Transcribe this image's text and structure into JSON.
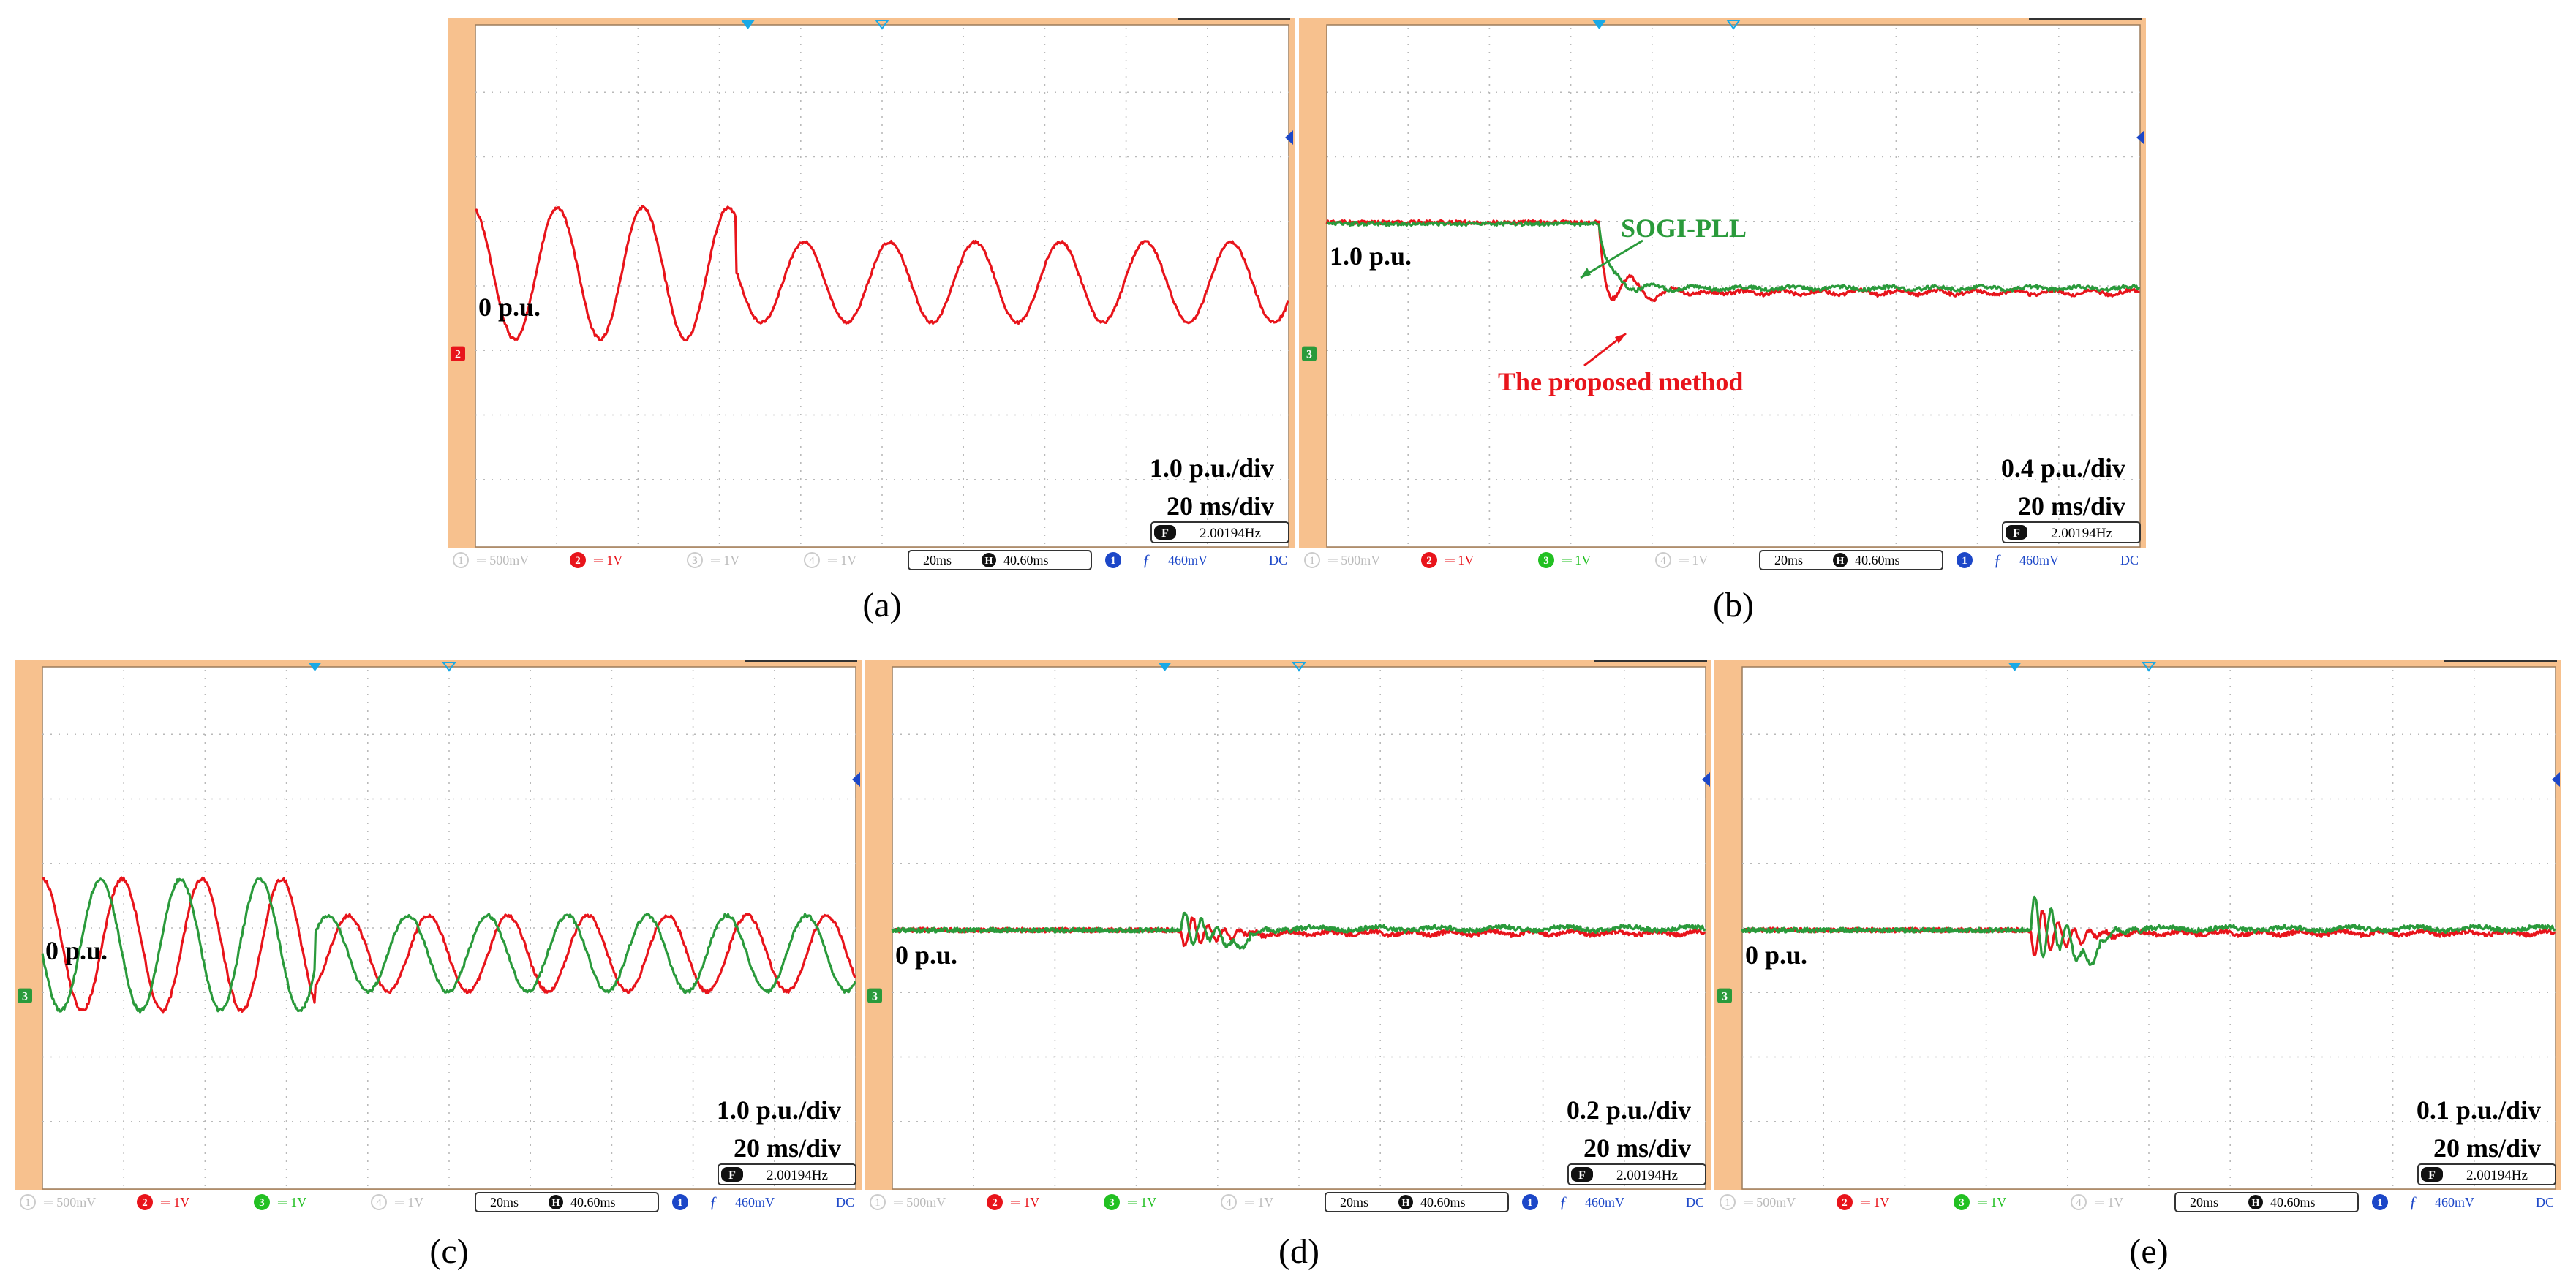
{
  "figure": {
    "captions": [
      "(a)",
      "(b)",
      "(c)",
      "(d)",
      "(e)"
    ]
  },
  "colors": {
    "orange": "#f7c18e",
    "red": "#e8141b",
    "green": "#2a9a3b",
    "grid": "#b9b9b9",
    "marker_cyan": "#19a9e6",
    "marker_blue": "#1c47c8"
  },
  "status_bar": {
    "ch1": "1",
    "ch1_scale": "500mV",
    "ch2": "2",
    "ch2_scale": "1V",
    "ch3": "3",
    "ch3_scale": "1V",
    "ch4": "4",
    "ch4_scale": "1V",
    "timebase": "20ms",
    "h_icon": "H",
    "delay": "40.60ms",
    "trig_ch": "1",
    "trig_symbol": "ƒ",
    "trig_level": "460mV",
    "coupling": "DC",
    "freq_icon": "F",
    "frequency": "2.00194Hz"
  },
  "panels": [
    {
      "id": "a",
      "ref_marker": "2",
      "ref_color": "red",
      "zero_label": "0 p.u.",
      "scale_label": "1.0 p.u./div",
      "time_label": "20 ms/div",
      "show_ch3": false,
      "traces": [
        "red"
      ]
    },
    {
      "id": "b",
      "ref_marker": "3",
      "ref_color": "green",
      "zero_label": "1.0 p.u.",
      "scale_label": "0.4 p.u./div",
      "time_label": "20 ms/div",
      "show_ch3": true,
      "annot_green": "SOGI-PLL",
      "annot_red": "The proposed method",
      "traces": [
        "red",
        "green"
      ]
    },
    {
      "id": "c",
      "ref_marker": "3",
      "ref_color": "green",
      "zero_label": "0 p.u.",
      "scale_label": "1.0 p.u./div",
      "time_label": "20 ms/div",
      "show_ch3": true,
      "traces": [
        "red",
        "green"
      ]
    },
    {
      "id": "d",
      "ref_marker": "3",
      "ref_color": "green",
      "zero_label": "0 p.u.",
      "scale_label": "0.2 p.u./div",
      "time_label": "20 ms/div",
      "show_ch3": true,
      "traces": [
        "red",
        "green"
      ]
    },
    {
      "id": "e",
      "ref_marker": "3",
      "ref_color": "green",
      "zero_label": "0 p.u.",
      "scale_label": "0.1 p.u./div",
      "time_label": "20 ms/div",
      "show_ch3": true,
      "traces": [
        "red",
        "green"
      ]
    }
  ]
}
